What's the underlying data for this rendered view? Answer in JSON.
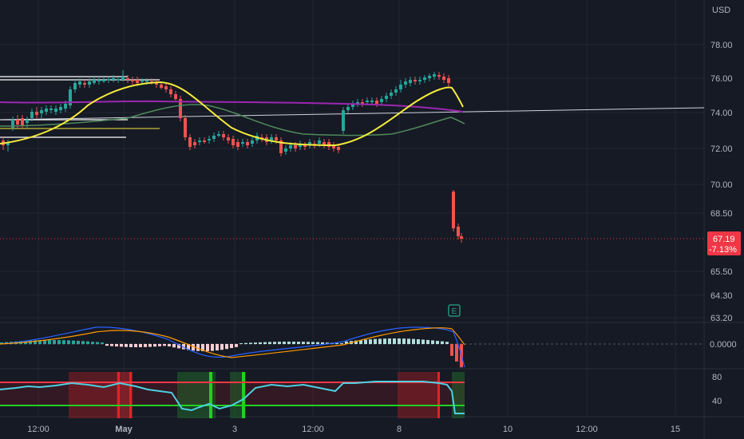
{
  "currency": "USD",
  "price_axis": {
    "labels": [
      "78.00",
      "76.00",
      "74.00",
      "72.00",
      "70.00",
      "68.50",
      "65.50",
      "64.30",
      "63.20"
    ]
  },
  "last_price": {
    "value": "67.19",
    "change": "-7.13%"
  },
  "macd_axis": {
    "labels": [
      "0.0000"
    ]
  },
  "rsi_axis": {
    "labels": [
      "80",
      "40"
    ]
  },
  "time_axis": {
    "labels": [
      "12:00",
      "May",
      "3",
      "12:00",
      "8",
      "10",
      "12:00",
      "15"
    ]
  },
  "earnings_marker": {
    "label": "E"
  },
  "colors": {
    "background": "#161a25",
    "up_candle": "#26a69a",
    "down_candle": "#ef5350",
    "ma_fast": "#f5eb3b",
    "ma_mid": "#4f8a5b",
    "ma_slow": "#9c27b0",
    "rsi_line": "#4dd0e1",
    "price_badge": "#f23645"
  }
}
